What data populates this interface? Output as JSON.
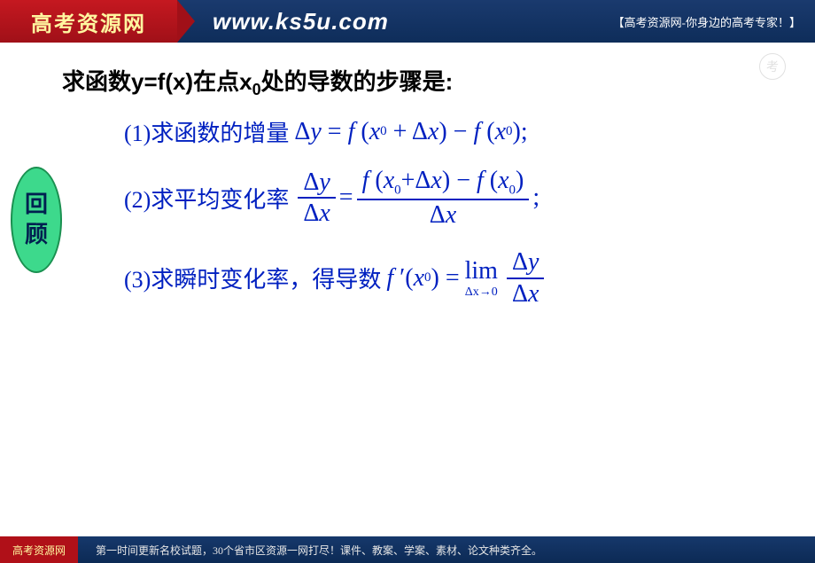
{
  "header": {
    "logo_text": "高考资源网",
    "url": "www.ks5u.com",
    "top_right": "【高考资源网-你身边的高考专家！】"
  },
  "review_label_1": "回",
  "review_label_2": "顾",
  "title": {
    "prefix": "求函数",
    "func": "y=f(x)",
    "mid": "在点",
    "x0": "x",
    "x0_sub": "0",
    "suffix": "处的导数的步骤是:"
  },
  "steps": {
    "s1": {
      "label": "(1)求函数的增量",
      "eq": "Δy = f (x₀ + Δx) − f (x₀);"
    },
    "s2": {
      "label": "(2)求平均变化率",
      "lhs_num": "Δy",
      "lhs_den": "Δx",
      "eq_sign": "=",
      "rhs_num": "f (x₀+Δx) − f (x₀)",
      "rhs_den": "Δx",
      "semicolon": ";"
    },
    "s3": {
      "label": "(3)求瞬时变化率，得导数",
      "fprime": "f ′(x₀) =",
      "lim": "lim",
      "lim_sub": "Δx→0",
      "frac_num": "Δy",
      "frac_den": "Δx"
    }
  },
  "footer": {
    "logo": "高考资源网",
    "text": "第一时间更新名校试题，30个省市区资源一网打尽！课件、教案、学案、素材、论文种类齐全。"
  },
  "colors": {
    "math_blue": "#0020c0",
    "title_black": "#000000",
    "header_bg": "#0e2d5a",
    "logo_red": "#b01018",
    "review_green": "#3dd98c"
  }
}
